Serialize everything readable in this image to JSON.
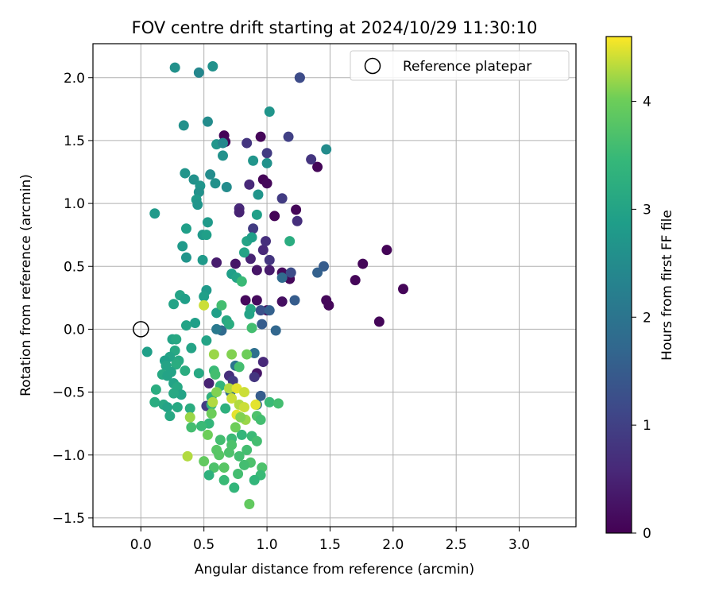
{
  "chart_data": {
    "type": "scatter",
    "title": "FOV centre drift starting at 2024/10/29 11:30:10",
    "xlabel": "Angular distance from reference (arcmin)",
    "ylabel": "Rotation from reference (arcmin)",
    "xlim": [
      -0.38,
      3.45
    ],
    "ylim": [
      -1.57,
      2.27
    ],
    "xticks": [
      0.0,
      0.5,
      1.0,
      1.5,
      2.0,
      2.5,
      3.0
    ],
    "xtick_labels": [
      "0.0",
      "0.5",
      "1.0",
      "1.5",
      "2.0",
      "2.5",
      "3.0"
    ],
    "yticks": [
      -1.5,
      -1.0,
      -0.5,
      0.0,
      0.5,
      1.0,
      1.5,
      2.0
    ],
    "ytick_labels": [
      "−1.5",
      "−1.0",
      "−0.5",
      "0.0",
      "0.5",
      "1.0",
      "1.5",
      "2.0"
    ],
    "grid": true,
    "legend": {
      "position": "top-right",
      "entries": [
        "Reference platepar"
      ]
    },
    "reference_point": {
      "x": 0.0,
      "y": 0.0,
      "label": "Reference platepar"
    },
    "colorbar": {
      "label": "Hours from first FF file",
      "colormap": "viridis",
      "range": [
        0,
        4.6
      ],
      "ticks": [
        0,
        1,
        2,
        3,
        4
      ],
      "tick_labels": [
        "0",
        "1",
        "2",
        "3",
        "4"
      ]
    },
    "points": [
      {
        "x": 0.66,
        "y": 1.54,
        "h": 0.05
      },
      {
        "x": 0.95,
        "y": 1.53,
        "h": 0.08
      },
      {
        "x": 0.67,
        "y": 1.49,
        "h": 0.1
      },
      {
        "x": 0.97,
        "y": 1.19,
        "h": 0.05
      },
      {
        "x": 1.0,
        "y": 1.16,
        "h": 0.1
      },
      {
        "x": 1.4,
        "y": 1.29,
        "h": 0.07
      },
      {
        "x": 1.06,
        "y": 0.9,
        "h": 0.05
      },
      {
        "x": 1.23,
        "y": 0.95,
        "h": 0.07
      },
      {
        "x": 0.92,
        "y": 0.47,
        "h": 0.3
      },
      {
        "x": 1.12,
        "y": 0.45,
        "h": 0.15
      },
      {
        "x": 1.18,
        "y": 0.4,
        "h": 0.1
      },
      {
        "x": 0.97,
        "y": 0.63,
        "h": 0.6
      },
      {
        "x": 1.76,
        "y": 0.52,
        "h": 0.07
      },
      {
        "x": 1.95,
        "y": 0.63,
        "h": 0.05
      },
      {
        "x": 1.7,
        "y": 0.39,
        "h": 0.08
      },
      {
        "x": 2.08,
        "y": 0.32,
        "h": 0.08
      },
      {
        "x": 1.47,
        "y": 0.23,
        "h": 0.1
      },
      {
        "x": 1.49,
        "y": 0.19,
        "h": 0.1
      },
      {
        "x": 1.89,
        "y": 0.06,
        "h": 0.07
      },
      {
        "x": 0.83,
        "y": 0.23,
        "h": 0.12
      },
      {
        "x": 0.92,
        "y": 0.23,
        "h": 0.15
      },
      {
        "x": 1.0,
        "y": 0.15,
        "h": 0.1
      },
      {
        "x": 1.12,
        "y": 0.22,
        "h": 0.2
      },
      {
        "x": 0.6,
        "y": 0.53,
        "h": 0.4
      },
      {
        "x": 0.75,
        "y": 0.52,
        "h": 0.3
      },
      {
        "x": 0.87,
        "y": 0.56,
        "h": 0.5
      },
      {
        "x": 0.78,
        "y": 0.96,
        "h": 0.6
      },
      {
        "x": 0.78,
        "y": 0.93,
        "h": 0.5
      },
      {
        "x": 0.99,
        "y": 0.7,
        "h": 0.7
      },
      {
        "x": 1.02,
        "y": 0.55,
        "h": 0.8
      },
      {
        "x": 1.02,
        "y": 0.47,
        "h": 0.4
      },
      {
        "x": 0.84,
        "y": 1.48,
        "h": 0.8
      },
      {
        "x": 1.0,
        "y": 1.4,
        "h": 0.9
      },
      {
        "x": 1.17,
        "y": 1.53,
        "h": 1.0
      },
      {
        "x": 1.35,
        "y": 1.35,
        "h": 0.8
      },
      {
        "x": 1.12,
        "y": 1.04,
        "h": 0.9
      },
      {
        "x": 0.86,
        "y": 1.15,
        "h": 0.6
      },
      {
        "x": 1.24,
        "y": 0.86,
        "h": 0.7
      },
      {
        "x": 0.89,
        "y": 0.8,
        "h": 0.9
      },
      {
        "x": 1.26,
        "y": 2.0,
        "h": 0.7
      },
      {
        "x": 1.26,
        "y": 2.0,
        "h": 1.2
      },
      {
        "x": 1.19,
        "y": 0.45,
        "h": 1.2
      },
      {
        "x": 1.22,
        "y": 0.23,
        "h": 1.5
      },
      {
        "x": 1.45,
        "y": 0.5,
        "h": 1.5
      },
      {
        "x": 1.4,
        "y": 0.45,
        "h": 1.6
      },
      {
        "x": 1.12,
        "y": 0.41,
        "h": 1.8
      },
      {
        "x": 0.95,
        "y": 0.15,
        "h": 1.3
      },
      {
        "x": 1.02,
        "y": 0.15,
        "h": 1.6
      },
      {
        "x": 0.96,
        "y": 0.04,
        "h": 1.5
      },
      {
        "x": 1.07,
        "y": -0.01,
        "h": 1.7
      },
      {
        "x": 0.92,
        "y": -0.35,
        "h": 0.3
      },
      {
        "x": 0.97,
        "y": -0.26,
        "h": 0.6
      },
      {
        "x": 0.9,
        "y": -0.38,
        "h": 0.8
      },
      {
        "x": 0.9,
        "y": -0.19,
        "h": 1.9
      },
      {
        "x": 0.54,
        "y": -0.43,
        "h": 0.5
      },
      {
        "x": 0.7,
        "y": -0.37,
        "h": 0.7
      },
      {
        "x": 0.73,
        "y": -0.41,
        "h": 0.9
      },
      {
        "x": 0.52,
        "y": -0.61,
        "h": 0.9
      },
      {
        "x": 0.95,
        "y": -0.53,
        "h": 1.5
      },
      {
        "x": 0.92,
        "y": -0.6,
        "h": 2.0
      },
      {
        "x": 0.71,
        "y": -0.5,
        "h": 1.8
      },
      {
        "x": 0.75,
        "y": -0.29,
        "h": 2.0
      },
      {
        "x": 0.64,
        "y": -0.01,
        "h": 1.8
      },
      {
        "x": 0.6,
        "y": 0.0,
        "h": 2.1
      },
      {
        "x": 0.27,
        "y": 2.08,
        "h": 2.6
      },
      {
        "x": 0.46,
        "y": 2.04,
        "h": 2.4
      },
      {
        "x": 0.57,
        "y": 2.09,
        "h": 2.6
      },
      {
        "x": 1.02,
        "y": 1.73,
        "h": 2.7
      },
      {
        "x": 0.34,
        "y": 1.62,
        "h": 2.6
      },
      {
        "x": 0.53,
        "y": 1.65,
        "h": 2.5
      },
      {
        "x": 0.6,
        "y": 1.47,
        "h": 2.7
      },
      {
        "x": 0.65,
        "y": 1.48,
        "h": 2.4
      },
      {
        "x": 1.47,
        "y": 1.43,
        "h": 2.5
      },
      {
        "x": 0.65,
        "y": 1.38,
        "h": 2.6
      },
      {
        "x": 0.89,
        "y": 1.34,
        "h": 2.7
      },
      {
        "x": 1.0,
        "y": 1.32,
        "h": 2.6
      },
      {
        "x": 0.35,
        "y": 1.24,
        "h": 2.7
      },
      {
        "x": 0.55,
        "y": 1.23,
        "h": 2.5
      },
      {
        "x": 0.42,
        "y": 1.19,
        "h": 2.6
      },
      {
        "x": 0.47,
        "y": 1.14,
        "h": 2.7
      },
      {
        "x": 0.59,
        "y": 1.16,
        "h": 2.6
      },
      {
        "x": 0.68,
        "y": 1.13,
        "h": 2.5
      },
      {
        "x": 0.46,
        "y": 1.09,
        "h": 2.6
      },
      {
        "x": 0.93,
        "y": 1.07,
        "h": 2.7
      },
      {
        "x": 0.44,
        "y": 1.03,
        "h": 2.8
      },
      {
        "x": 0.45,
        "y": 0.99,
        "h": 2.7
      },
      {
        "x": 0.11,
        "y": 0.92,
        "h": 2.8
      },
      {
        "x": 0.92,
        "y": 0.91,
        "h": 2.9
      },
      {
        "x": 0.53,
        "y": 0.85,
        "h": 2.8
      },
      {
        "x": 0.36,
        "y": 0.8,
        "h": 2.9
      },
      {
        "x": 0.49,
        "y": 0.75,
        "h": 2.8
      },
      {
        "x": 0.52,
        "y": 0.75,
        "h": 2.9
      },
      {
        "x": 0.84,
        "y": 0.7,
        "h": 3.0
      },
      {
        "x": 0.88,
        "y": 0.73,
        "h": 2.9
      },
      {
        "x": 1.18,
        "y": 0.7,
        "h": 3.2
      },
      {
        "x": 0.33,
        "y": 0.66,
        "h": 2.8
      },
      {
        "x": 0.82,
        "y": 0.61,
        "h": 3.0
      },
      {
        "x": 0.36,
        "y": 0.57,
        "h": 2.7
      },
      {
        "x": 0.49,
        "y": 0.55,
        "h": 2.8
      },
      {
        "x": 0.72,
        "y": 0.44,
        "h": 2.9
      },
      {
        "x": 0.76,
        "y": 0.41,
        "h": 3.0
      },
      {
        "x": 0.52,
        "y": 0.31,
        "h": 2.8
      },
      {
        "x": 0.5,
        "y": 0.26,
        "h": 2.9
      },
      {
        "x": 0.31,
        "y": 0.27,
        "h": 3.0
      },
      {
        "x": 0.35,
        "y": 0.24,
        "h": 2.9
      },
      {
        "x": 0.26,
        "y": 0.2,
        "h": 3.0
      },
      {
        "x": 0.87,
        "y": 0.16,
        "h": 3.1
      },
      {
        "x": 0.86,
        "y": 0.12,
        "h": 3.0
      },
      {
        "x": 0.6,
        "y": 0.13,
        "h": 2.9
      },
      {
        "x": 0.68,
        "y": 0.07,
        "h": 3.1
      },
      {
        "x": 0.7,
        "y": 0.04,
        "h": 3.2
      },
      {
        "x": 0.43,
        "y": 0.05,
        "h": 2.9
      },
      {
        "x": 0.36,
        "y": 0.03,
        "h": 3.0
      },
      {
        "x": 0.52,
        "y": -0.09,
        "h": 3.0
      },
      {
        "x": 0.05,
        "y": -0.18,
        "h": 2.9
      },
      {
        "x": 0.25,
        "y": -0.08,
        "h": 3.0
      },
      {
        "x": 0.28,
        "y": -0.08,
        "h": 3.1
      },
      {
        "x": 0.4,
        "y": -0.15,
        "h": 3.0
      },
      {
        "x": 0.27,
        "y": -0.17,
        "h": 3.1
      },
      {
        "x": 0.23,
        "y": -0.22,
        "h": 3.0
      },
      {
        "x": 0.19,
        "y": -0.25,
        "h": 2.9
      },
      {
        "x": 0.2,
        "y": -0.29,
        "h": 3.0
      },
      {
        "x": 0.3,
        "y": -0.25,
        "h": 3.1
      },
      {
        "x": 0.28,
        "y": -0.28,
        "h": 3.2
      },
      {
        "x": 0.24,
        "y": -0.34,
        "h": 3.0
      },
      {
        "x": 0.17,
        "y": -0.36,
        "h": 3.1
      },
      {
        "x": 0.35,
        "y": -0.33,
        "h": 3.2
      },
      {
        "x": 0.21,
        "y": -0.37,
        "h": 3.0
      },
      {
        "x": 0.46,
        "y": -0.35,
        "h": 3.1
      },
      {
        "x": 0.26,
        "y": -0.43,
        "h": 3.0
      },
      {
        "x": 0.29,
        "y": -0.46,
        "h": 3.1
      },
      {
        "x": 0.12,
        "y": -0.48,
        "h": 3.2
      },
      {
        "x": 0.32,
        "y": -0.52,
        "h": 3.0
      },
      {
        "x": 0.26,
        "y": -0.51,
        "h": 3.1
      },
      {
        "x": 0.11,
        "y": -0.58,
        "h": 3.2
      },
      {
        "x": 0.18,
        "y": -0.6,
        "h": 3.1
      },
      {
        "x": 0.21,
        "y": -0.62,
        "h": 3.0
      },
      {
        "x": 0.29,
        "y": -0.62,
        "h": 3.1
      },
      {
        "x": 0.39,
        "y": -0.63,
        "h": 3.2
      },
      {
        "x": 0.23,
        "y": -0.69,
        "h": 3.1
      },
      {
        "x": 0.56,
        "y": -0.54,
        "h": 3.3
      },
      {
        "x": 0.63,
        "y": -0.45,
        "h": 3.4
      },
      {
        "x": 0.58,
        "y": -0.33,
        "h": 3.5
      },
      {
        "x": 0.59,
        "y": -0.36,
        "h": 3.6
      },
      {
        "x": 0.56,
        "y": -0.6,
        "h": 3.4
      },
      {
        "x": 0.67,
        "y": -0.63,
        "h": 3.3
      },
      {
        "x": 0.54,
        "y": -0.75,
        "h": 3.4
      },
      {
        "x": 0.48,
        "y": -0.77,
        "h": 3.5
      },
      {
        "x": 0.4,
        "y": -0.78,
        "h": 3.6
      },
      {
        "x": 0.72,
        "y": -0.87,
        "h": 3.5
      },
      {
        "x": 0.8,
        "y": -0.84,
        "h": 3.4
      },
      {
        "x": 0.88,
        "y": -0.85,
        "h": 3.5
      },
      {
        "x": 0.63,
        "y": -0.88,
        "h": 3.6
      },
      {
        "x": 0.72,
        "y": -0.92,
        "h": 3.7
      },
      {
        "x": 0.6,
        "y": -0.96,
        "h": 3.8
      },
      {
        "x": 0.84,
        "y": -0.96,
        "h": 3.6
      },
      {
        "x": 0.7,
        "y": -0.98,
        "h": 3.7
      },
      {
        "x": 0.62,
        "y": -1.0,
        "h": 3.8
      },
      {
        "x": 0.78,
        "y": -1.01,
        "h": 3.6
      },
      {
        "x": 0.87,
        "y": -1.06,
        "h": 3.7
      },
      {
        "x": 0.5,
        "y": -1.05,
        "h": 3.9
      },
      {
        "x": 0.66,
        "y": -1.1,
        "h": 3.8
      },
      {
        "x": 0.58,
        "y": -1.1,
        "h": 3.7
      },
      {
        "x": 0.82,
        "y": -1.08,
        "h": 3.6
      },
      {
        "x": 0.96,
        "y": -1.1,
        "h": 3.7
      },
      {
        "x": 0.54,
        "y": -1.16,
        "h": 3.3
      },
      {
        "x": 0.77,
        "y": -1.15,
        "h": 3.6
      },
      {
        "x": 0.95,
        "y": -1.16,
        "h": 3.5
      },
      {
        "x": 0.9,
        "y": -1.2,
        "h": 3.4
      },
      {
        "x": 0.66,
        "y": -1.2,
        "h": 3.5
      },
      {
        "x": 0.74,
        "y": -1.26,
        "h": 3.4
      },
      {
        "x": 0.86,
        "y": -1.39,
        "h": 3.9
      },
      {
        "x": 0.37,
        "y": -1.01,
        "h": 4.3
      },
      {
        "x": 0.39,
        "y": -0.7,
        "h": 4.2
      },
      {
        "x": 0.5,
        "y": 0.19,
        "h": 4.4
      },
      {
        "x": 0.64,
        "y": 0.19,
        "h": 3.6
      },
      {
        "x": 0.8,
        "y": 0.38,
        "h": 3.5
      },
      {
        "x": 0.88,
        "y": 0.01,
        "h": 3.6
      },
      {
        "x": 0.72,
        "y": -0.2,
        "h": 4.1
      },
      {
        "x": 0.84,
        "y": -0.2,
        "h": 4.0
      },
      {
        "x": 0.58,
        "y": -0.2,
        "h": 4.2
      },
      {
        "x": 0.78,
        "y": -0.3,
        "h": 3.6
      },
      {
        "x": 0.6,
        "y": -0.5,
        "h": 4.1
      },
      {
        "x": 0.7,
        "y": -0.47,
        "h": 4.3
      },
      {
        "x": 0.76,
        "y": -0.47,
        "h": 4.5
      },
      {
        "x": 0.82,
        "y": -0.5,
        "h": 4.4
      },
      {
        "x": 0.72,
        "y": -0.55,
        "h": 4.4
      },
      {
        "x": 0.78,
        "y": -0.6,
        "h": 4.3
      },
      {
        "x": 0.91,
        "y": -0.6,
        "h": 4.5
      },
      {
        "x": 0.82,
        "y": -0.62,
        "h": 4.4
      },
      {
        "x": 0.57,
        "y": -0.58,
        "h": 4.3
      },
      {
        "x": 0.76,
        "y": -0.68,
        "h": 4.5
      },
      {
        "x": 0.56,
        "y": -0.67,
        "h": 4.0
      },
      {
        "x": 0.83,
        "y": -0.72,
        "h": 4.2
      },
      {
        "x": 0.92,
        "y": -0.69,
        "h": 3.7
      },
      {
        "x": 0.95,
        "y": -0.72,
        "h": 3.6
      },
      {
        "x": 1.02,
        "y": -0.58,
        "h": 3.5
      },
      {
        "x": 1.09,
        "y": -0.59,
        "h": 3.6
      },
      {
        "x": 0.79,
        "y": -0.7,
        "h": 4.1
      },
      {
        "x": 0.75,
        "y": -0.78,
        "h": 4.0
      },
      {
        "x": 0.53,
        "y": -0.84,
        "h": 4.0
      },
      {
        "x": 0.92,
        "y": -0.89,
        "h": 3.6
      }
    ]
  }
}
